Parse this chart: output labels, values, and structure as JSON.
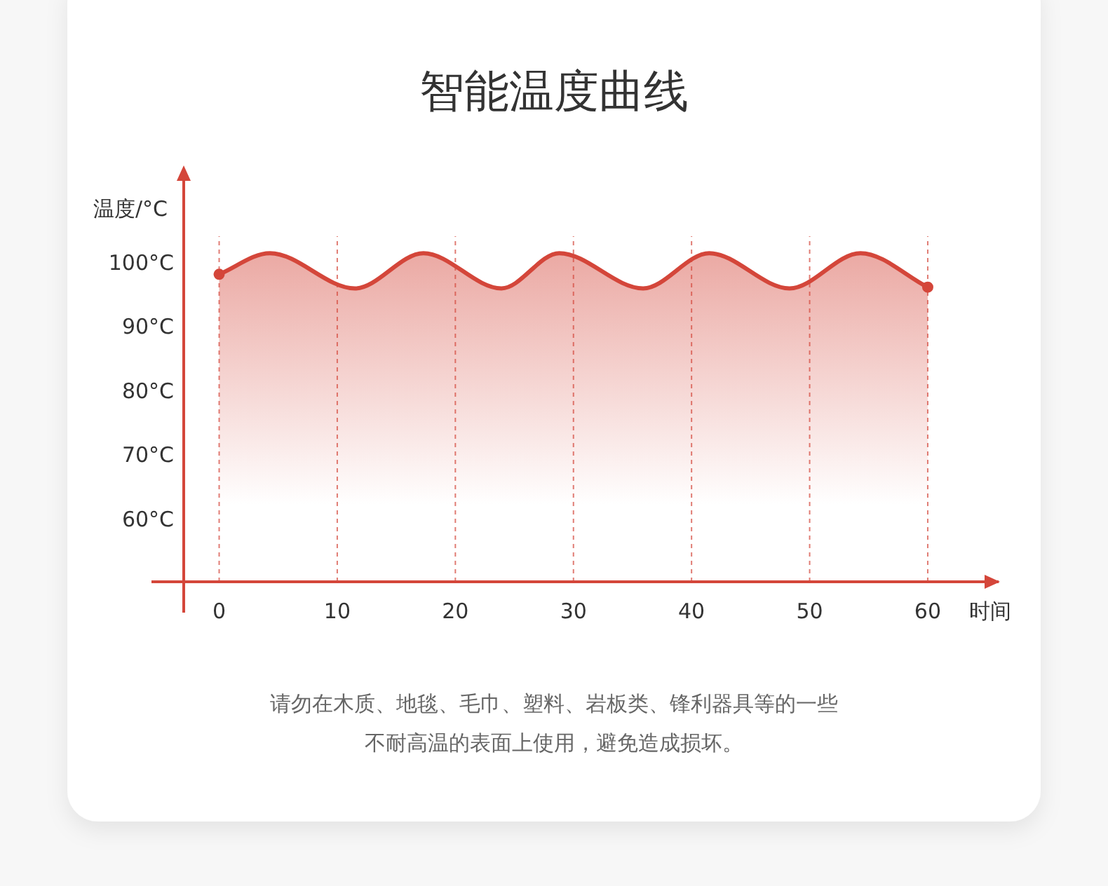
{
  "chart_data": {
    "type": "area",
    "title": "智能温度曲线",
    "ylabel": "温度/°C",
    "xlabel": "时间",
    "x": [
      0,
      4.3,
      11.5,
      17.3,
      23.9,
      28.8,
      35.9,
      41.5,
      48.3,
      54.3,
      60
    ],
    "values": [
      98,
      101.3,
      95.8,
      101.3,
      95.8,
      101.3,
      95.8,
      101.3,
      95.8,
      101.3,
      96
    ],
    "color": "#d4463a",
    "grid": "x",
    "xlim": [
      -3,
      66
    ],
    "ylim": [
      50,
      115
    ],
    "xticks": [
      0,
      10,
      20,
      30,
      40,
      50,
      60
    ],
    "yticks": [
      {
        "value": 60,
        "label": "60°C"
      },
      {
        "value": 70,
        "label": "70°C"
      },
      {
        "value": 80,
        "label": "80°C"
      },
      {
        "value": 90,
        "label": "90°C"
      },
      {
        "value": 100,
        "label": "100°C"
      }
    ],
    "annotations": [
      "请勿在木质、地毯、毛巾、塑料、岩板类、锋利器具等的一些",
      "不耐高温的表面上使用，避免造成损坏。"
    ]
  }
}
